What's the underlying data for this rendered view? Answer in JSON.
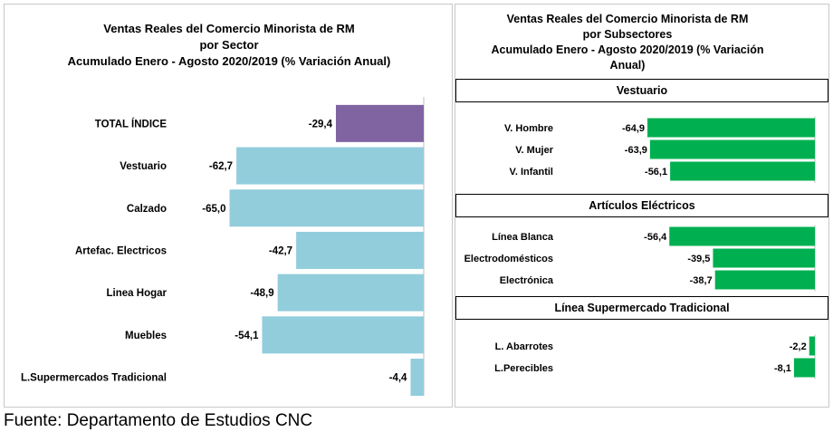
{
  "source_note": "Fuente: Departamento de Estudios CNC",
  "colors": {
    "total_bar": "#8064a2",
    "sector_bar": "#92cddc",
    "subsector_bar": "#00b050"
  },
  "chart_data": [
    {
      "type": "bar",
      "orientation": "horizontal",
      "title_lines": [
        "Ventas Reales del Comercio Minorista de RM",
        "por Sector",
        "Acumulado Enero - Agosto 2020/2019 (% Variación Anual)"
      ],
      "categories": [
        "TOTAL ÍNDICE",
        "Vestuario",
        "Calzado",
        "Artefac. Electricos",
        "Linea Hogar",
        "Muebles",
        "L.Supermercados Tradicional"
      ],
      "values": [
        -29.4,
        -62.7,
        -65.0,
        -42.7,
        -48.9,
        -54.1,
        -4.4
      ],
      "value_labels": [
        "-29,4",
        "-62,7",
        "-65,0",
        "-42,7",
        "-48,9",
        "-54,1",
        "-4,4"
      ],
      "xlim": [
        -80,
        0
      ],
      "grid": false
    },
    {
      "type": "bar",
      "orientation": "horizontal",
      "title_lines": [
        "Ventas Reales del Comercio Minorista de RM",
        "por Subsectores",
        "Acumulado Enero - Agosto 2020/2019 (% Variación",
        "Anual)"
      ],
      "groups": [
        {
          "name": "Vestuario",
          "categories": [
            "V. Hombre",
            "V. Mujer",
            "V. Infantil"
          ],
          "values": [
            -64.9,
            -63.9,
            -56.1
          ],
          "value_labels": [
            "-64,9",
            "-63,9",
            "-56,1"
          ]
        },
        {
          "name": "Artículos Eléctricos",
          "categories": [
            "Línea Blanca",
            "Electrodomésticos",
            "Electrónica"
          ],
          "values": [
            -56.4,
            -39.5,
            -38.7
          ],
          "value_labels": [
            "-56,4",
            "-39,5",
            "-38,7"
          ]
        },
        {
          "name": "Línea  Supermercado Tradicional",
          "categories": [
            "L. Abarrotes",
            "L.Perecibles"
          ],
          "values": [
            -2.2,
            -8.1
          ],
          "value_labels": [
            "-2,2",
            "-8,1"
          ]
        }
      ],
      "xlim": [
        -80,
        0
      ],
      "grid": false
    }
  ]
}
